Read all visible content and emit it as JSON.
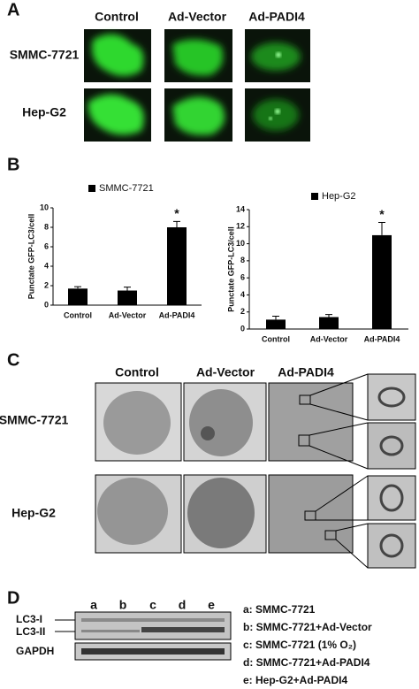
{
  "panel_a": {
    "label": "A",
    "columns": [
      "Control",
      "Ad-Vector",
      "Ad-PADI4"
    ],
    "rows": [
      "SMMC-7721",
      "Hep-G2"
    ]
  },
  "panel_b": {
    "label": "B"
  },
  "chart_data": [
    {
      "type": "bar",
      "ylabel": "Punctate GFP-LC3/cell",
      "categories": [
        "Control",
        "Ad-Vector",
        "Ad-PADI4"
      ],
      "series": [
        {
          "name": "SMMC-7721",
          "color": "#000000",
          "values": [
            1.7,
            1.5,
            8.0
          ],
          "errors": [
            0.2,
            0.35,
            0.6
          ]
        }
      ],
      "ylim": [
        0,
        10
      ],
      "yticks": [
        0,
        2,
        4,
        6,
        8,
        10
      ],
      "annotation": "*"
    },
    {
      "type": "bar",
      "ylabel": "Punctate GFP-LC3/cell",
      "categories": [
        "Control",
        "Ad-Vector",
        "Ad-PADI4"
      ],
      "series": [
        {
          "name": "Hep-G2",
          "color": "#000000",
          "values": [
            1.1,
            1.4,
            11.0
          ],
          "errors": [
            0.4,
            0.3,
            1.5
          ]
        }
      ],
      "ylim": [
        0,
        14
      ],
      "yticks": [
        0,
        2,
        4,
        6,
        8,
        10,
        12,
        14
      ],
      "annotation": "*"
    }
  ],
  "panel_c": {
    "label": "C",
    "columns": [
      "Control",
      "Ad-Vector",
      "Ad-PADI4"
    ],
    "rows": [
      "SMMC-7721",
      "Hep-G2"
    ]
  },
  "panel_d": {
    "label": "D",
    "lanes": [
      "a",
      "b",
      "c",
      "d",
      "e"
    ],
    "bands": [
      "LC3-I",
      "LC3-II",
      "GAPDH"
    ],
    "key": [
      "a: SMMC-7721",
      "b: SMMC-7721+Ad-Vector",
      "c: SMMC-7721 (1% O₂)",
      "d: SMMC-7721+Ad-PADI4",
      "e: Hep-G2+Ad-PADI4"
    ]
  }
}
